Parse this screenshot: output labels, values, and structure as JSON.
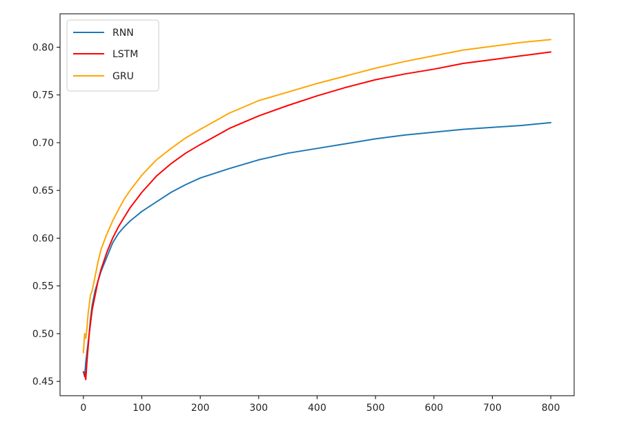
{
  "chart_data": {
    "type": "line",
    "title": "",
    "xlabel": "",
    "ylabel": "",
    "xlim": [
      -40,
      840
    ],
    "ylim": [
      0.435,
      0.835
    ],
    "xticks": [
      0,
      100,
      200,
      300,
      400,
      500,
      600,
      700,
      800
    ],
    "yticks": [
      0.45,
      0.5,
      0.55,
      0.6,
      0.65,
      0.7,
      0.75,
      0.8
    ],
    "xtick_labels": [
      "0",
      "100",
      "200",
      "300",
      "400",
      "500",
      "600",
      "700",
      "800"
    ],
    "ytick_labels": [
      "0.45",
      "0.50",
      "0.55",
      "0.60",
      "0.65",
      "0.70",
      "0.75",
      "0.80"
    ],
    "grid": false,
    "legend_position": "top-left",
    "series": [
      {
        "name": "RNN",
        "color": "#1f77b4",
        "points": [
          [
            0,
            0.46
          ],
          [
            2,
            0.455
          ],
          [
            4,
            0.47
          ],
          [
            6,
            0.48
          ],
          [
            8,
            0.49
          ],
          [
            10,
            0.5
          ],
          [
            12,
            0.515
          ],
          [
            15,
            0.53
          ],
          [
            20,
            0.545
          ],
          [
            25,
            0.555
          ],
          [
            30,
            0.565
          ],
          [
            40,
            0.58
          ],
          [
            50,
            0.595
          ],
          [
            60,
            0.605
          ],
          [
            70,
            0.612
          ],
          [
            80,
            0.618
          ],
          [
            90,
            0.623
          ],
          [
            100,
            0.628
          ],
          [
            125,
            0.638
          ],
          [
            150,
            0.648
          ],
          [
            175,
            0.656
          ],
          [
            200,
            0.663
          ],
          [
            250,
            0.673
          ],
          [
            300,
            0.682
          ],
          [
            350,
            0.689
          ],
          [
            400,
            0.694
          ],
          [
            450,
            0.699
          ],
          [
            500,
            0.704
          ],
          [
            550,
            0.708
          ],
          [
            600,
            0.711
          ],
          [
            650,
            0.714
          ],
          [
            700,
            0.716
          ],
          [
            750,
            0.718
          ],
          [
            800,
            0.721
          ]
        ]
      },
      {
        "name": "LSTM",
        "color": "#ff0000",
        "points": [
          [
            0,
            0.46
          ],
          [
            2,
            0.458
          ],
          [
            4,
            0.452
          ],
          [
            6,
            0.47
          ],
          [
            8,
            0.485
          ],
          [
            10,
            0.5
          ],
          [
            12,
            0.51
          ],
          [
            15,
            0.525
          ],
          [
            20,
            0.54
          ],
          [
            25,
            0.555
          ],
          [
            30,
            0.567
          ],
          [
            40,
            0.585
          ],
          [
            50,
            0.6
          ],
          [
            60,
            0.612
          ],
          [
            70,
            0.622
          ],
          [
            80,
            0.632
          ],
          [
            90,
            0.64
          ],
          [
            100,
            0.648
          ],
          [
            125,
            0.665
          ],
          [
            150,
            0.678
          ],
          [
            175,
            0.689
          ],
          [
            200,
            0.698
          ],
          [
            250,
            0.715
          ],
          [
            300,
            0.728
          ],
          [
            350,
            0.739
          ],
          [
            400,
            0.749
          ],
          [
            450,
            0.758
          ],
          [
            500,
            0.766
          ],
          [
            550,
            0.772
          ],
          [
            600,
            0.777
          ],
          [
            650,
            0.783
          ],
          [
            700,
            0.787
          ],
          [
            750,
            0.791
          ],
          [
            800,
            0.795
          ]
        ]
      },
      {
        "name": "GRU",
        "color": "#ffa500",
        "points": [
          [
            0,
            0.48
          ],
          [
            2,
            0.5
          ],
          [
            4,
            0.495
          ],
          [
            6,
            0.505
          ],
          [
            8,
            0.52
          ],
          [
            10,
            0.53
          ],
          [
            12,
            0.54
          ],
          [
            15,
            0.545
          ],
          [
            20,
            0.56
          ],
          [
            25,
            0.575
          ],
          [
            30,
            0.588
          ],
          [
            40,
            0.604
          ],
          [
            50,
            0.618
          ],
          [
            60,
            0.63
          ],
          [
            70,
            0.641
          ],
          [
            80,
            0.65
          ],
          [
            90,
            0.658
          ],
          [
            100,
            0.666
          ],
          [
            125,
            0.682
          ],
          [
            150,
            0.694
          ],
          [
            175,
            0.705
          ],
          [
            200,
            0.714
          ],
          [
            250,
            0.731
          ],
          [
            300,
            0.744
          ],
          [
            350,
            0.753
          ],
          [
            400,
            0.762
          ],
          [
            450,
            0.77
          ],
          [
            500,
            0.778
          ],
          [
            550,
            0.785
          ],
          [
            600,
            0.791
          ],
          [
            650,
            0.797
          ],
          [
            700,
            0.801
          ],
          [
            750,
            0.805
          ],
          [
            800,
            0.808
          ]
        ]
      }
    ]
  }
}
